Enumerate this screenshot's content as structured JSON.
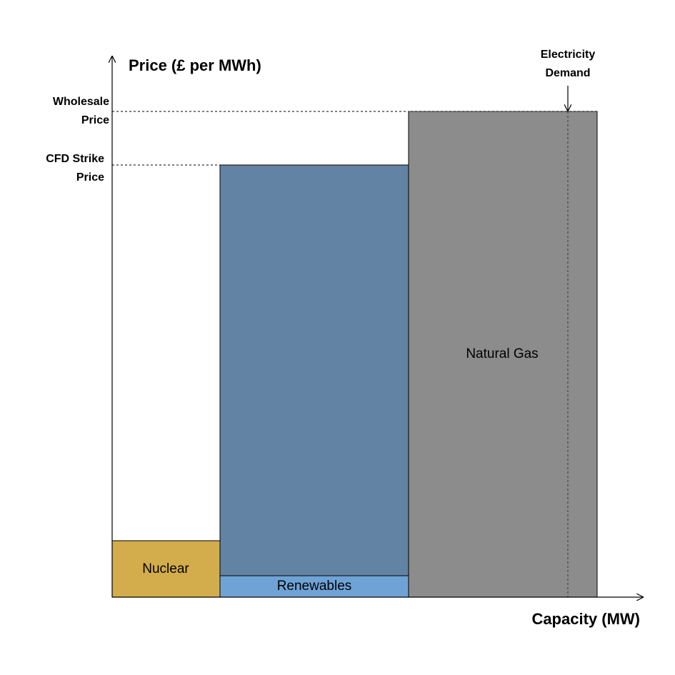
{
  "y_axis_label": "Price (£ per MWh)",
  "x_axis_label": "Capacity (MW)",
  "levels": {
    "wholesale_price": [
      "Wholesale",
      "Price"
    ],
    "cfd_strike_price": [
      "CFD Strike",
      "Price"
    ],
    "electricity_demand": [
      "Electricity",
      "Demand"
    ]
  },
  "blocks": {
    "nuclear": "Nuclear",
    "renewables": "Renewables",
    "natural_gas": "Natural Gas"
  }
}
